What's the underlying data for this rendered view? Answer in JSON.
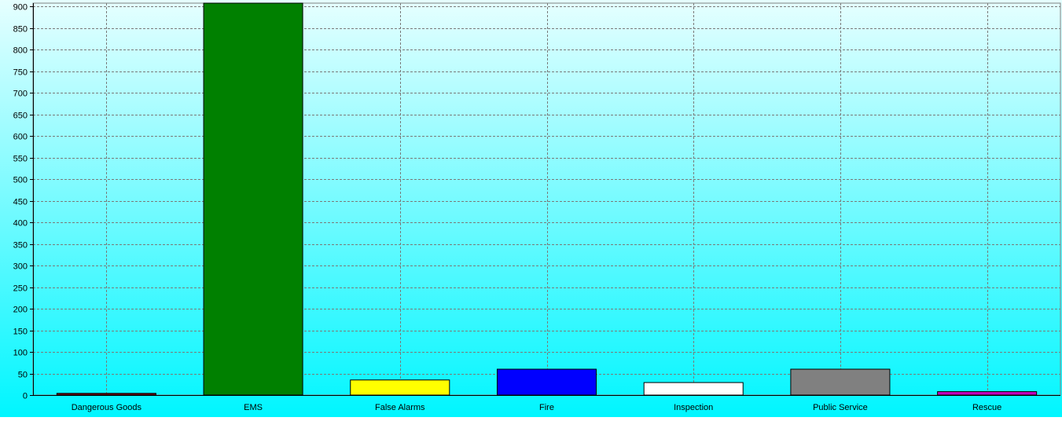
{
  "chart_data": {
    "type": "bar",
    "title": "",
    "xlabel": "",
    "ylabel": "",
    "categories": [
      "Dangerous Goods",
      "EMS",
      "False Alarms",
      "Fire",
      "Inspection",
      "Public Service",
      "Rescue"
    ],
    "values": [
      4,
      908,
      35,
      60,
      29,
      60,
      8
    ],
    "bar_colors": [
      "#800000",
      "#008000",
      "#FFFF00",
      "#0000FF",
      "#FFFFFF",
      "#808080",
      "#C000C0"
    ],
    "ylim": [
      0,
      908
    ],
    "yticks": [
      0,
      50,
      100,
      150,
      200,
      250,
      300,
      350,
      400,
      450,
      500,
      550,
      600,
      650,
      700,
      750,
      800,
      850,
      900
    ],
    "grid": true,
    "legend": "none",
    "background_gradient": [
      "#E6FFFF",
      "#00F6FF"
    ]
  }
}
